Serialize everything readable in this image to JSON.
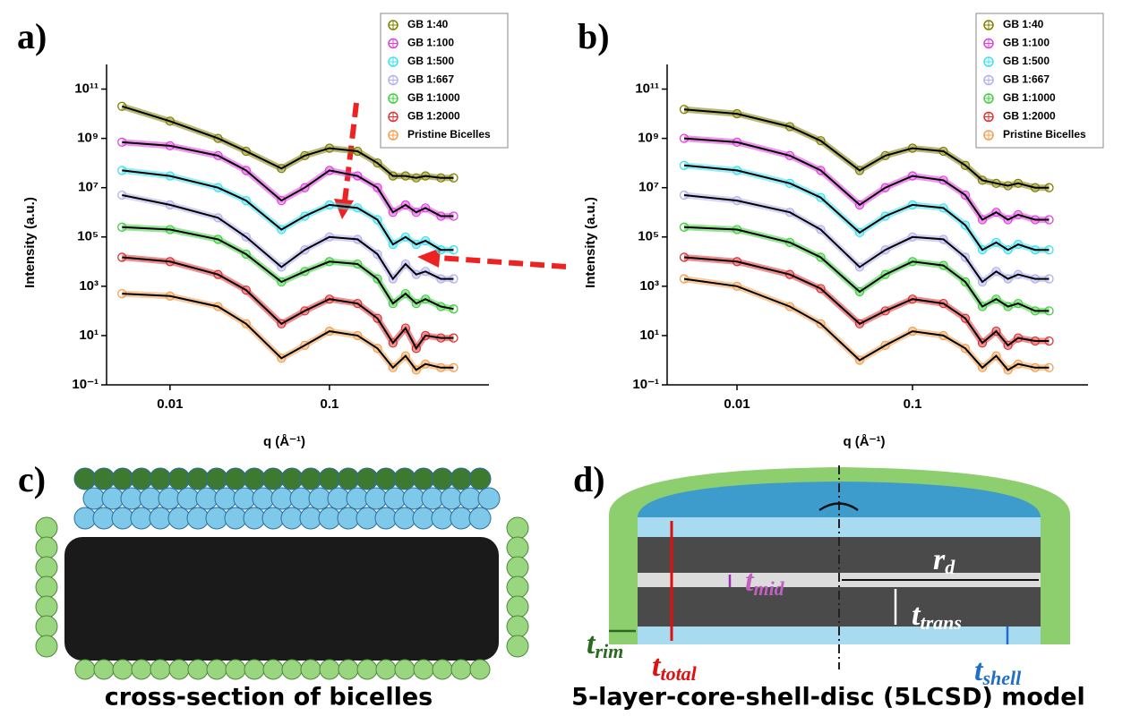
{
  "chart_data": [
    {
      "type": "line",
      "panel_label": "a)",
      "xlabel": "q (Å⁻¹)",
      "ylabel": "Intensity (a.u.)",
      "log_x": true,
      "log_y": true,
      "legend": "top-right",
      "xlim": [
        0.004,
        1
      ],
      "ylim": [
        0.1,
        1000000000000
      ],
      "xticks": [
        0.01,
        0.1
      ],
      "yticks": [
        {
          "value": 0.1,
          "label": "10⁻¹"
        },
        {
          "value": 10,
          "label": "10¹"
        },
        {
          "value": 1000,
          "label": "10³"
        },
        {
          "value": 100000,
          "label": "10⁵"
        },
        {
          "value": 10000000,
          "label": "10⁷"
        },
        {
          "value": 1000000000,
          "label": "10⁹"
        },
        {
          "value": 100000000000,
          "label": "10¹¹"
        }
      ],
      "x": [
        0.005,
        0.01,
        0.02,
        0.03,
        0.05,
        0.07,
        0.1,
        0.15,
        0.2,
        0.25,
        0.3,
        0.35,
        0.4,
        0.5,
        0.6
      ],
      "series": [
        {
          "name": "GB 1:40",
          "color": "#808000",
          "values": [
            20000000000,
            5000000000,
            1000000000,
            300000000,
            60000000,
            200000000,
            400000000,
            300000000,
            100000000,
            30000000,
            30000000,
            25000000,
            30000000,
            25000000,
            25000000
          ]
        },
        {
          "name": "GB 1:100",
          "color": "#e040e0",
          "values": [
            700000000,
            500000000,
            200000000,
            50000000,
            3000000,
            10000000,
            50000000,
            30000000,
            10000000,
            1000000,
            2000000,
            1000000,
            1500000,
            700000,
            700000
          ]
        },
        {
          "name": "GB 1:500",
          "color": "#40e0f0",
          "values": [
            50000000,
            30000000,
            10000000,
            3000000,
            200000,
            700000,
            2000000,
            1500000,
            500000,
            50000,
            100000,
            50000,
            70000,
            30000,
            30000
          ]
        },
        {
          "name": "GB 1:667",
          "color": "#b0b0f0",
          "values": [
            5000000,
            2000000,
            600000,
            100000,
            6000,
            30000,
            100000,
            80000,
            20000,
            2000,
            8000,
            3000,
            4000,
            2000,
            2000
          ]
        },
        {
          "name": "GB 1:1000",
          "color": "#40d040",
          "values": [
            250000,
            200000,
            80000,
            20000,
            1500,
            4000,
            10000,
            8000,
            2000,
            200,
            500,
            200,
            300,
            150,
            120
          ]
        },
        {
          "name": "GB 1:2000",
          "color": "#e03030",
          "values": [
            15000,
            10000,
            3000,
            700,
            30,
            100,
            300,
            200,
            50,
            5,
            20,
            3,
            10,
            8,
            8
          ]
        },
        {
          "name": "Pristine Bicelles",
          "color": "#f0a050",
          "values": [
            500,
            400,
            150,
            30,
            1.2,
            4,
            15,
            10,
            3,
            0.5,
            1.5,
            0.4,
            0.7,
            0.5,
            0.5
          ]
        }
      ]
    },
    {
      "type": "line",
      "panel_label": "b)",
      "xlabel": "q (Å⁻¹)",
      "ylabel": "Intensity (a.u.)",
      "log_x": true,
      "log_y": true,
      "legend": "top-right",
      "xlim": [
        0.004,
        1
      ],
      "ylim": [
        0.1,
        1000000000000
      ],
      "xticks": [
        0.01,
        0.1
      ],
      "yticks": [
        {
          "value": 0.1,
          "label": "10⁻¹"
        },
        {
          "value": 10,
          "label": "10¹"
        },
        {
          "value": 1000,
          "label": "10³"
        },
        {
          "value": 100000,
          "label": "10⁵"
        },
        {
          "value": 10000000,
          "label": "10⁷"
        },
        {
          "value": 1000000000,
          "label": "10⁹"
        },
        {
          "value": 100000000000,
          "label": "10¹¹"
        }
      ],
      "x": [
        0.005,
        0.01,
        0.02,
        0.03,
        0.05,
        0.07,
        0.1,
        0.15,
        0.2,
        0.25,
        0.3,
        0.35,
        0.4,
        0.5,
        0.6
      ],
      "series": [
        {
          "name": "GB 1:40",
          "color": "#808000",
          "values": [
            15000000000,
            10000000000,
            3000000000,
            800000000,
            50000000,
            200000000,
            400000000,
            300000000,
            80000000,
            20000000,
            15000000,
            12000000,
            15000000,
            10000000,
            10000000
          ]
        },
        {
          "name": "GB 1:100",
          "color": "#e040e0",
          "values": [
            1000000000,
            700000000,
            200000000,
            50000000,
            2000000,
            10000000,
            30000000,
            20000000,
            5000000,
            500000,
            1000000,
            500000,
            800000,
            500000,
            500000
          ]
        },
        {
          "name": "GB 1:500",
          "color": "#40e0f0",
          "values": [
            80000000,
            50000000,
            15000000,
            4000000,
            150000,
            700000,
            2000000,
            1500000,
            300000,
            30000,
            60000,
            30000,
            50000,
            30000,
            30000
          ]
        },
        {
          "name": "GB 1:667",
          "color": "#b0b0f0",
          "values": [
            5000000,
            3000000,
            1000000,
            200000,
            6000,
            30000,
            100000,
            80000,
            15000,
            1500,
            4000,
            2000,
            3000,
            2000,
            2000
          ]
        },
        {
          "name": "GB 1:1000",
          "color": "#40d040",
          "values": [
            250000,
            200000,
            60000,
            15000,
            600,
            3000,
            10000,
            7000,
            1500,
            150,
            300,
            150,
            200,
            100,
            100
          ]
        },
        {
          "name": "GB 1:2000",
          "color": "#e03030",
          "values": [
            15000,
            10000,
            3000,
            800,
            30,
            100,
            300,
            200,
            50,
            5,
            15,
            4,
            8,
            6,
            6
          ]
        },
        {
          "name": "Pristine Bicelles",
          "color": "#f0a050",
          "values": [
            2000,
            1000,
            150,
            30,
            1,
            4,
            15,
            10,
            3,
            0.5,
            1.5,
            0.4,
            0.7,
            0.5,
            0.5
          ]
        }
      ]
    }
  ],
  "panels": {
    "c": {
      "label": "c)",
      "caption": "cross-section of bicelles"
    },
    "d": {
      "label": "d)",
      "caption": "5-layer-core-shell-disc (5LCSD) model",
      "symbols": [
        {
          "main": "t",
          "sub": "mid"
        },
        {
          "main": "r",
          "sub": "d"
        },
        {
          "main": "t",
          "sub": "trans"
        },
        {
          "main": "t",
          "sub": "rim"
        },
        {
          "main": "t",
          "sub": "total"
        },
        {
          "main": "t",
          "sub": "shell"
        }
      ]
    }
  }
}
